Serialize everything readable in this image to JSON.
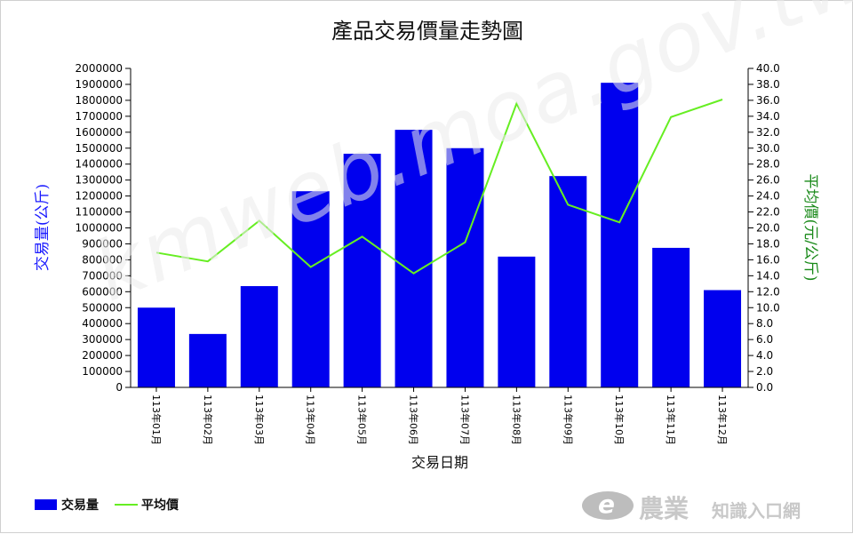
{
  "chart_data": {
    "type": "bar",
    "title": "產品交易價量走勢圖",
    "xlabel": "交易日期",
    "ylabel": "交易量(公斤)",
    "y2label": "平均價(元/公斤)",
    "categories": [
      "113年01月",
      "113年02月",
      "113年03月",
      "113年04月",
      "113年05月",
      "113年06月",
      "113年07月",
      "113年08月",
      "113年09月",
      "113年10月",
      "113年11月",
      "113年12月"
    ],
    "ylim": [
      0,
      2000000
    ],
    "y2lim": [
      0,
      40
    ],
    "y_ticks": [
      "0",
      "100000",
      "200000",
      "300000",
      "400000",
      "500000",
      "600000",
      "700000",
      "800000",
      "900000",
      "1000000",
      "1100000",
      "1200000",
      "1300000",
      "1400000",
      "1500000",
      "1600000",
      "1700000",
      "1800000",
      "1900000",
      "2000000"
    ],
    "y2_ticks": [
      "0.0",
      "2.0",
      "4.0",
      "6.0",
      "8.0",
      "10.0",
      "12.0",
      "14.0",
      "16.0",
      "18.0",
      "20.0",
      "22.0",
      "24.0",
      "26.0",
      "28.0",
      "30.0",
      "32.0",
      "34.0",
      "36.0",
      "38.0",
      "40.0"
    ],
    "series": [
      {
        "name": "交易量",
        "kind": "bar",
        "axis": "left",
        "color": "#0000ee",
        "values": [
          500000,
          335000,
          635000,
          1230000,
          1465000,
          1615000,
          1500000,
          820000,
          1325000,
          1910000,
          875000,
          610000
        ]
      },
      {
        "name": "平均價",
        "kind": "line",
        "axis": "right",
        "color": "#66ee22",
        "values": [
          16.9,
          15.8,
          20.9,
          15.1,
          18.9,
          14.3,
          18.2,
          35.6,
          22.9,
          20.7,
          33.9,
          36.1
        ]
      }
    ],
    "grid": false,
    "legend": "bottom-left"
  },
  "watermark": "kmweb.moa.gov.tw",
  "logo": {
    "mark": "e",
    "big": "農業",
    "small": "知識入口網"
  }
}
